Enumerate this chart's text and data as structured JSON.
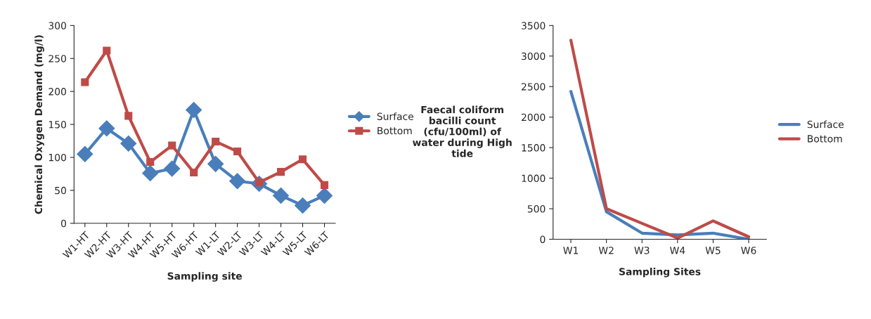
{
  "chart_data": [
    {
      "type": "line",
      "xlabel": "Sampling site",
      "ylabel": "Chemical Oxygen Demand (mg/l)",
      "categories": [
        "W1-HT",
        "W2-HT",
        "W3-HT",
        "W4-HT",
        "W5-HT",
        "W6-HT",
        "W1-LT",
        "W2-LT",
        "W3-LT",
        "W4-LT",
        "W5-LT",
        "W6-LT"
      ],
      "series": [
        {
          "name": "Surface",
          "color": "#4a7ebb",
          "marker": "diamond",
          "values": [
            105,
            144,
            121,
            76,
            83,
            172,
            90,
            64,
            60,
            42,
            27,
            42
          ]
        },
        {
          "name": "Bottom",
          "color": "#be4b48",
          "marker": "square",
          "values": [
            214,
            262,
            163,
            93,
            118,
            77,
            124,
            109,
            62,
            78,
            97,
            58
          ]
        }
      ],
      "ylim": [
        0,
        300
      ],
      "yticks": [
        0,
        50,
        100,
        150,
        200,
        250,
        300
      ],
      "grid": false,
      "legend": "right"
    },
    {
      "type": "line",
      "xlabel": "Sampling Sites",
      "ylabel": "Faecal coliform\nbacilli count\n(cfu/100ml) of\nwater during High\ntide",
      "categories": [
        "W1",
        "W2",
        "W3",
        "W4",
        "W5",
        "W6"
      ],
      "series": [
        {
          "name": "Surface",
          "color": "#4a7ebb",
          "values": [
            2420,
            450,
            100,
            70,
            100,
            0
          ]
        },
        {
          "name": "Bottom",
          "color": "#be4b48",
          "values": [
            3260,
            500,
            260,
            20,
            300,
            40
          ]
        }
      ],
      "ylim": [
        0,
        3500
      ],
      "yticks": [
        0,
        500,
        1000,
        1500,
        2000,
        2500,
        3000,
        3500
      ],
      "grid": false,
      "legend": "right"
    }
  ]
}
